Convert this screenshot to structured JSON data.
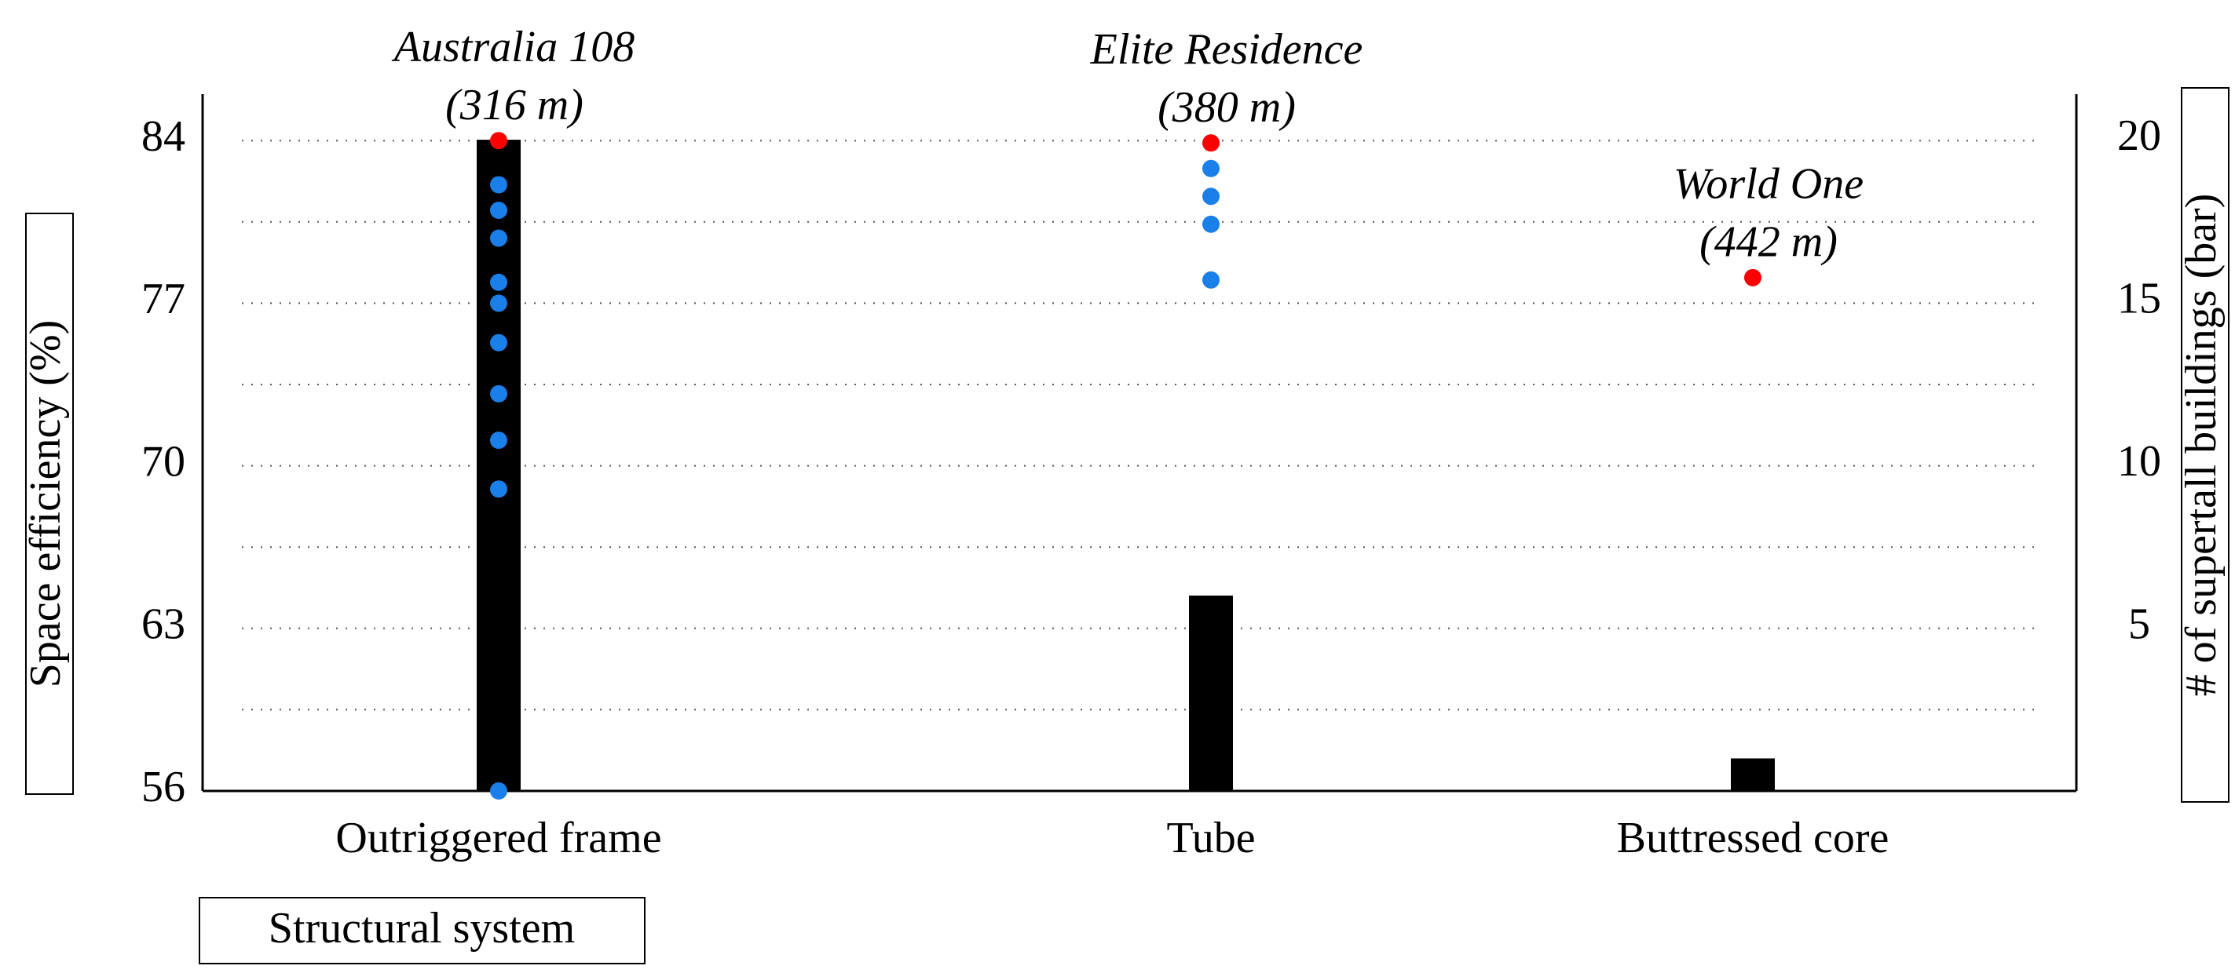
{
  "chart_data": {
    "type": "bar-scatter",
    "categories": [
      "Outriggered frame",
      "Tube",
      "Buttressed core"
    ],
    "x_label": "Structural system",
    "y_label": "Space efficiency (%)",
    "y2_label": "# of supertall buildings (bar)",
    "ylim": [
      56,
      86
    ],
    "yticks": [
      56,
      63,
      70,
      77,
      84
    ],
    "y_minor_ticks": [
      59.5,
      66.5,
      73.5,
      80.5
    ],
    "y2lim": [
      0,
      21.4
    ],
    "y2ticks": [
      5,
      10,
      15,
      20
    ],
    "grid": true,
    "bars": {
      "axis": "y2",
      "color": "#000000",
      "values": [
        20,
        6,
        1
      ]
    },
    "highlighted": {
      "color": "#ff0000",
      "values": [
        84,
        83.9,
        78.1
      ]
    },
    "annotations": [
      [
        "Australia 108",
        "(316 m)"
      ],
      [
        "Elite Residence",
        "(380 m)"
      ],
      [
        "World One",
        "(442 m)"
      ]
    ],
    "others": {
      "color": "#1a7fe8",
      "values": [
        [
          82.1,
          81.0,
          79.8,
          77.9,
          77.0,
          75.3,
          73.1,
          71.1,
          69.0,
          56
        ],
        [
          82.8,
          81.6,
          80.4,
          78.0
        ],
        []
      ]
    }
  }
}
